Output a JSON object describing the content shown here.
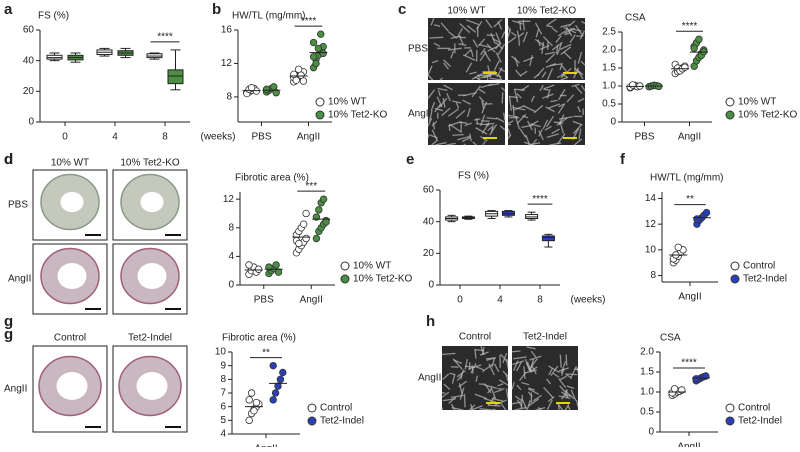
{
  "chart_data": [
    {
      "panel": "a",
      "type": "box",
      "title": "FS (%)",
      "categories": [
        "0",
        "4",
        "8"
      ],
      "xlabel": "(weeks)",
      "ylim": [
        0,
        60
      ],
      "yticks": [
        0,
        20,
        40,
        60
      ],
      "series": [
        {
          "name": "10% WT",
          "color": "#ffffff",
          "min": [
            40,
            43,
            41
          ],
          "q1": [
            41,
            44,
            42
          ],
          "median": [
            42,
            45.5,
            43
          ],
          "q3": [
            43.5,
            47,
            44.5
          ],
          "max": [
            45,
            48,
            45
          ]
        },
        {
          "name": "10% Tet2-KO",
          "color": "#4a8f43",
          "min": [
            39,
            42,
            21
          ],
          "q1": [
            40.5,
            43.5,
            25
          ],
          "median": [
            42,
            45,
            30
          ],
          "q3": [
            43.5,
            46.5,
            34
          ],
          "max": [
            45,
            48,
            47
          ]
        }
      ],
      "annotations": [
        {
          "text": "****",
          "category": 2
        }
      ]
    },
    {
      "panel": "b",
      "type": "dot",
      "title": "HW/TL (mg/mm)",
      "categories": [
        "PBS",
        "AngII"
      ],
      "ylim": [
        5,
        16
      ],
      "yticks": [
        8,
        12,
        16
      ],
      "series": [
        {
          "name": "10% WT",
          "color": "#ffffff",
          "values": [
            [
              8.5,
              8.6,
              8.8,
              9.0,
              8.7,
              8.4,
              8.9,
              9.1
            ],
            [
              9.8,
              10.2,
              10.5,
              10.8,
              11.0,
              10.3,
              10.0,
              11.3,
              10.6,
              9.9,
              10.7
            ]
          ],
          "means": [
            8.75,
            10.5
          ]
        },
        {
          "name": "10% Tet2-KO",
          "color": "#4a8f43",
          "values": [
            [
              8.6,
              8.8,
              9.0,
              9.2,
              8.5,
              8.9
            ],
            [
              11.5,
              12.5,
              13.0,
              13.5,
              14.0,
              14.5,
              12.0,
              13.8,
              15.5,
              13.2,
              12.8
            ]
          ],
          "means": [
            8.8,
            13.3
          ]
        }
      ],
      "annotations": [
        {
          "text": "****",
          "category": 1
        }
      ]
    },
    {
      "panel": "c",
      "type": "dot",
      "title": "CSA",
      "categories": [
        "PBS",
        "AngII"
      ],
      "ylim": [
        0,
        2.5
      ],
      "yticks": [
        0,
        0.5,
        {
          "value": 1,
          "label": "1.0"
        },
        1.5,
        {
          "value": 2,
          "label": "2.0"
        },
        2.5
      ],
      "series": [
        {
          "name": "10% WT",
          "color": "#ffffff",
          "values": [
            [
              0.95,
              1.0,
              1.02,
              0.98,
              1.0,
              0.97,
              1.03
            ],
            [
              1.35,
              1.4,
              1.45,
              1.5,
              1.55,
              1.6,
              1.5,
              1.42,
              1.48,
              1.52
            ]
          ],
          "means": [
            0.99,
            1.48
          ]
        },
        {
          "name": "10% Tet2-KO",
          "color": "#4a8f43",
          "values": [
            [
              0.98,
              1.0,
              1.02,
              1.01,
              0.99
            ],
            [
              1.55,
              1.7,
              1.8,
              1.9,
              2.0,
              2.1,
              2.2,
              2.3,
              1.85,
              1.95,
              2.05
            ]
          ],
          "means": [
            1.0,
            1.94
          ]
        }
      ],
      "annotations": [
        {
          "text": "****",
          "category": 1
        }
      ]
    },
    {
      "panel": "d",
      "type": "dot",
      "title": "Fibrotic area (%)",
      "categories": [
        "PBS",
        "AngII"
      ],
      "ylim": [
        0,
        13
      ],
      "yticks": [
        0,
        4,
        8,
        12
      ],
      "series": [
        {
          "name": "10% WT",
          "color": "#ffffff",
          "values": [
            [
              1.5,
              2,
              2.5,
              1.8,
              2.2,
              2.8
            ],
            [
              4.5,
              5,
              5.5,
              6,
              6.5,
              7,
              7.5,
              8,
              8.5,
              10,
              6.2,
              5.8
            ]
          ],
          "means": [
            2.1,
            6.7
          ]
        },
        {
          "name": "10% Tet2-KO",
          "color": "#4a8f43",
          "values": [
            [
              1.6,
              2,
              2.3,
              2.8,
              1.8,
              2.5
            ],
            [
              6.5,
              7.5,
              8,
              8.5,
              9,
              9.5,
              10.5,
              11.5,
              12,
              8.8
            ]
          ],
          "means": [
            2.2,
            9.2
          ]
        }
      ],
      "annotations": [
        {
          "text": "***",
          "category": 1
        }
      ]
    },
    {
      "panel": "e",
      "type": "box",
      "title": "FS (%)",
      "categories": [
        "0",
        "4",
        "8"
      ],
      "xlabel": "(weeks)",
      "ylim": [
        0,
        60
      ],
      "yticks": [
        0,
        20,
        40,
        60
      ],
      "series": [
        {
          "name": "Control",
          "color": "#ffffff",
          "min": [
            40,
            42,
            41
          ],
          "q1": [
            41,
            43.5,
            42
          ],
          "median": [
            42,
            45,
            43
          ],
          "q3": [
            43,
            46.5,
            44.5
          ],
          "max": [
            44,
            47,
            46
          ]
        },
        {
          "name": "Tet2-Indel",
          "color": "#2b40b8",
          "min": [
            41.5,
            43,
            24
          ],
          "q1": [
            42,
            44,
            28
          ],
          "median": [
            42.5,
            45,
            30
          ],
          "q3": [
            43,
            46.5,
            31
          ],
          "max": [
            43.5,
            47,
            32
          ]
        }
      ],
      "annotations": [
        {
          "text": "****",
          "category": 2
        }
      ]
    },
    {
      "panel": "f",
      "type": "dot",
      "title": "HW/TL (mg/mm)",
      "categories": [
        "AngII"
      ],
      "ylim": [
        7.5,
        14.5
      ],
      "yticks": [
        8,
        10,
        12,
        14
      ],
      "series": [
        {
          "name": "Control",
          "color": "#ffffff",
          "values": [
            [
              9,
              9.2,
              9.5,
              9.8,
              10,
              9.3,
              9.6,
              10.2
            ]
          ],
          "means": [
            9.6
          ]
        },
        {
          "name": "Tet2-Indel",
          "color": "#2b40b8",
          "values": [
            [
              12,
              12.3,
              12.5,
              12.7,
              12.9,
              12.4
            ]
          ],
          "means": [
            12.5
          ]
        }
      ],
      "annotations": [
        {
          "text": "**",
          "category": 0
        }
      ]
    },
    {
      "panel": "g",
      "type": "dot",
      "title": "Fibrotic area (%)",
      "categories": [
        "AngII"
      ],
      "ylim": [
        4,
        10
      ],
      "yticks": [
        4,
        5,
        6,
        7,
        8,
        9,
        10
      ],
      "series": [
        {
          "name": "Control",
          "color": "#ffffff",
          "values": [
            [
              5,
              5.5,
              5.8,
              6,
              6.2,
              6.5,
              7,
              5.7,
              6.3
            ]
          ],
          "means": [
            6.0
          ]
        },
        {
          "name": "Tet2-Indel",
          "color": "#2b40b8",
          "values": [
            [
              6.5,
              7,
              7.5,
              8,
              8.5,
              9
            ]
          ],
          "means": [
            7.7
          ]
        }
      ],
      "annotations": [
        {
          "text": "**",
          "category": 0
        }
      ]
    },
    {
      "panel": "h",
      "type": "dot",
      "title": "CSA",
      "categories": [
        "AngII"
      ],
      "ylim": [
        0,
        2
      ],
      "yticks": [
        0,
        0.5,
        {
          "value": 1,
          "label": "1.0"
        },
        1.5,
        {
          "value": 2,
          "label": "2.0"
        }
      ],
      "series": [
        {
          "name": "Control",
          "color": "#ffffff",
          "values": [
            [
              0.92,
              0.95,
              1.0,
              1.02,
              1.05,
              0.98,
              1.08
            ]
          ],
          "means": [
            1.0
          ]
        },
        {
          "name": "Tet2-Indel",
          "color": "#2b40b8",
          "values": [
            [
              1.28,
              1.32,
              1.35,
              1.38,
              1.4,
              1.33
            ]
          ],
          "means": [
            1.35
          ]
        }
      ],
      "annotations": [
        {
          "text": "****",
          "category": 0
        }
      ]
    }
  ],
  "image_panels": [
    {
      "panel": "c",
      "kind": "micro",
      "columns": [
        "10% WT",
        "10% Tet2-KO"
      ],
      "rows": [
        "PBS",
        "AngII"
      ]
    },
    {
      "panel": "d",
      "kind": "heart",
      "columns": [
        "10% WT",
        "10% Tet2-KO"
      ],
      "rows": [
        "PBS",
        "AngII"
      ]
    },
    {
      "panel": "g",
      "kind": "heart",
      "columns": [
        "Control",
        "Tet2-Indel"
      ],
      "rows": [
        "AngII"
      ]
    },
    {
      "panel": "h",
      "kind": "micro",
      "columns": [
        "Control",
        "Tet2-Indel"
      ],
      "rows": [
        "AngII"
      ]
    }
  ]
}
